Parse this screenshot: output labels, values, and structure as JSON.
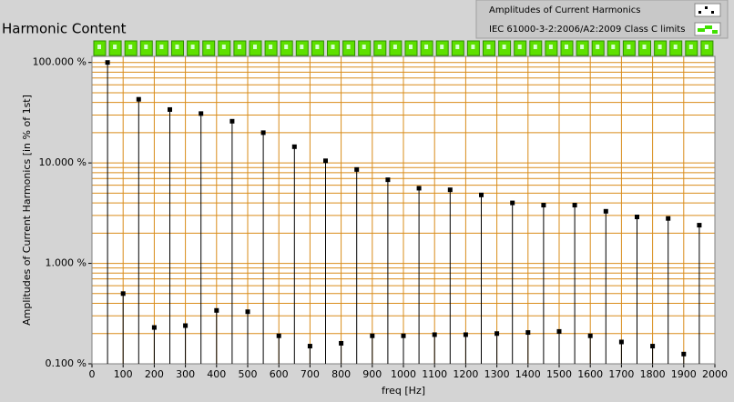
{
  "chart_data": {
    "type": "stem",
    "title": "Harmonic Content",
    "xlabel": "freq [Hz]",
    "ylabel": "Amplitudes of Current Harmonics [in % of 1st]",
    "legend": [
      {
        "name": "Amplitudes of Current Harmonics",
        "color": "#000000"
      },
      {
        "name": "IEC 61000-3-2:2006/A2:2009 Class C limits",
        "color": "#40e000"
      }
    ],
    "x": [
      50,
      100,
      150,
      200,
      250,
      300,
      350,
      400,
      450,
      500,
      550,
      600,
      650,
      700,
      750,
      800,
      850,
      900,
      950,
      1000,
      1050,
      1100,
      1150,
      1200,
      1250,
      1300,
      1350,
      1400,
      1450,
      1500,
      1550,
      1600,
      1650,
      1700,
      1750,
      1800,
      1850,
      1900,
      1950
    ],
    "series": [
      {
        "name": "Amplitudes of Current Harmonics",
        "color": "#000000",
        "values": [
          100,
          0.5,
          43,
          0.23,
          34,
          0.24,
          31,
          0.34,
          26,
          0.33,
          20,
          0.19,
          14.5,
          0.15,
          10.5,
          0.16,
          8.6,
          0.19,
          6.8,
          0.19,
          5.6,
          0.195,
          5.4,
          0.195,
          4.8,
          0.2,
          4.0,
          0.205,
          3.8,
          0.21,
          3.8,
          0.19,
          3.3,
          0.165,
          2.9,
          0.15,
          2.8,
          0.125,
          2.4
        ]
      }
    ],
    "xlim": [
      0,
      2000
    ],
    "xticks": [
      0,
      100,
      200,
      300,
      400,
      500,
      600,
      700,
      800,
      900,
      1000,
      1100,
      1200,
      1300,
      1400,
      1500,
      1600,
      1700,
      1800,
      1900,
      2000
    ],
    "ylim": [
      0.1,
      115
    ],
    "yticks": [
      {
        "value": 0.1,
        "label": "0.100 %"
      },
      {
        "value": 1,
        "label": "1.000 %"
      },
      {
        "value": 10,
        "label": "10.000 %"
      },
      {
        "value": 100,
        "label": "100.000 %"
      }
    ],
    "log_y": true,
    "grid": true,
    "grid_color": "#d98c1a"
  }
}
